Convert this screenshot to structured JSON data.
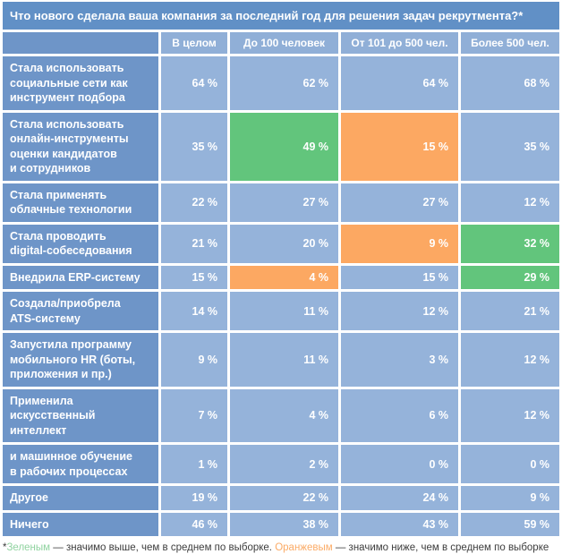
{
  "colors": {
    "title_bg": "#6190c6",
    "label_bg": "#6e95c8",
    "header_bg": "#90afd7",
    "cell_bg": "#95b3da",
    "green": "#62c57c",
    "orange": "#fca862",
    "text_white": "#ffffff",
    "footnote_dark": "#3d3d3d",
    "footnote_green": "#90d3a0",
    "footnote_orange": "#fbab66"
  },
  "chart_data": {
    "type": "table",
    "title": "Что нового сделала ваша компания за последний год для решения задач рекрутмента?*",
    "unit": "%",
    "columns": [
      "В целом",
      "До 100 человек",
      "От 101 до 500 чел.",
      "Более 500 чел."
    ],
    "rows": [
      {
        "label": "Стала использовать\nсоциальные сети как\nинструмент подбора",
        "values": [
          64,
          62,
          64,
          68
        ],
        "highlights": [
          "none",
          "none",
          "none",
          "none"
        ]
      },
      {
        "label": "Стала использовать\nонлайн-инструменты\nоценки кандидатов\nи сотрудников",
        "values": [
          35,
          49,
          15,
          35
        ],
        "highlights": [
          "none",
          "green",
          "orange",
          "none"
        ]
      },
      {
        "label": "Стала применять\nоблачные технологии",
        "values": [
          22,
          27,
          27,
          12
        ],
        "highlights": [
          "none",
          "none",
          "none",
          "none"
        ]
      },
      {
        "label": "Стала проводить\ndigital-собеседования",
        "values": [
          21,
          20,
          9,
          32
        ],
        "highlights": [
          "none",
          "none",
          "orange",
          "green"
        ]
      },
      {
        "label": "Внедрила ERP-систему",
        "values": [
          15,
          4,
          15,
          29
        ],
        "highlights": [
          "none",
          "orange",
          "none",
          "green"
        ]
      },
      {
        "label": "Создала/приобрела\nATS-систему",
        "values": [
          14,
          11,
          12,
          21
        ],
        "highlights": [
          "none",
          "none",
          "none",
          "none"
        ]
      },
      {
        "label": "Запустила программу\nмобильного HR (боты,\nприложения и пр.)",
        "values": [
          9,
          11,
          3,
          12
        ],
        "highlights": [
          "none",
          "none",
          "none",
          "none"
        ]
      },
      {
        "label": "Применила\nискусственный\nинтеллект",
        "values": [
          7,
          4,
          6,
          12
        ],
        "highlights": [
          "none",
          "none",
          "none",
          "none"
        ]
      },
      {
        "label": "и машинное обучение\nв рабочих процессах",
        "values": [
          1,
          2,
          0,
          0
        ],
        "highlights": [
          "none",
          "none",
          "none",
          "none"
        ]
      },
      {
        "label": "Другое",
        "values": [
          19,
          22,
          24,
          9
        ],
        "highlights": [
          "none",
          "none",
          "none",
          "none"
        ]
      },
      {
        "label": "Ничего",
        "values": [
          46,
          38,
          43,
          59
        ],
        "highlights": [
          "none",
          "none",
          "none",
          "none"
        ]
      }
    ],
    "highlight_legend": {
      "green": "значимо выше, чем в среднем по выборке",
      "orange": "значимо ниже, чем в среднем по выборке"
    }
  },
  "footnote": {
    "segments": [
      {
        "text": "*",
        "color": "dark"
      },
      {
        "text": "Зеленым",
        "color": "green"
      },
      {
        "text": " — значимо выше, чем в среднем по выборке. ",
        "color": "dark"
      },
      {
        "text": "Оранжевым",
        "color": "orange"
      },
      {
        "text": " — значимо ниже, чем в среднем по выборке",
        "color": "dark"
      }
    ]
  }
}
